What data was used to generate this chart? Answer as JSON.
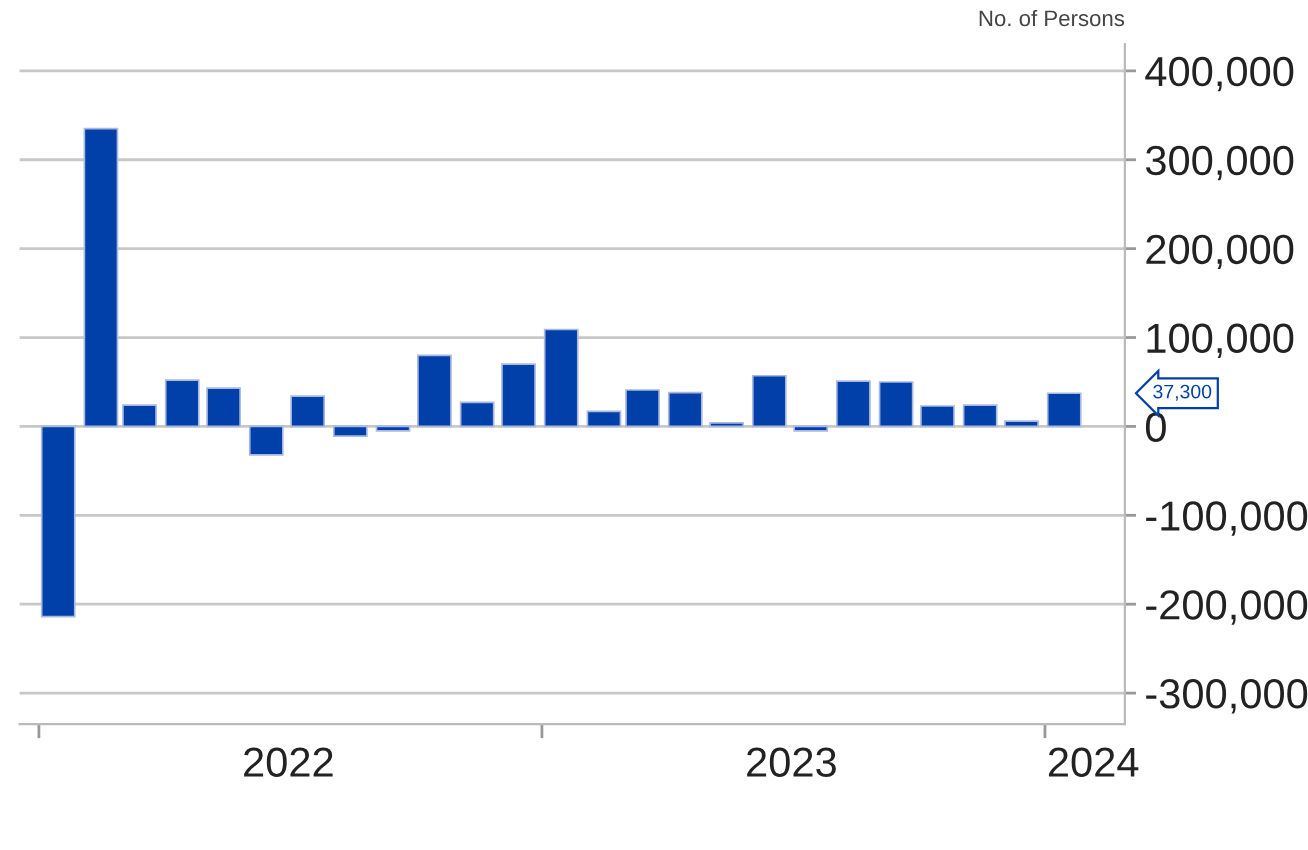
{
  "chart_data": {
    "type": "bar",
    "ylabel": "No. of Persons",
    "x": [
      "2022-01-15",
      "2022-02-15",
      "2022-03-15",
      "2022-04-15",
      "2022-05-15",
      "2022-06-15",
      "2022-07-15",
      "2022-08-15",
      "2022-09-15",
      "2022-10-15",
      "2022-11-15",
      "2022-12-15",
      "2023-01-15",
      "2023-02-15",
      "2023-03-15",
      "2023-04-15",
      "2023-05-15",
      "2023-06-15",
      "2023-07-15",
      "2023-08-15",
      "2023-09-15",
      "2023-10-15",
      "2023-11-15",
      "2023-12-15",
      "2024-01-15"
    ],
    "values": [
      -214000,
      335000,
      24000,
      52000,
      43000,
      -32000,
      34000,
      -11000,
      -5000,
      80000,
      27000,
      70000,
      109000,
      17000,
      41000,
      38000,
      4000,
      57000,
      -5000,
      51000,
      50000,
      23000,
      24000,
      6000,
      37300
    ],
    "color": "#0040a8",
    "xlim": [
      "2021-12-18",
      "2024-02-28"
    ],
    "xticks": [
      {
        "value": "2022-01-01",
        "label": null
      },
      {
        "value": "2022-07-01",
        "label": "2022"
      },
      {
        "value": "2023-01-01",
        "label": null
      },
      {
        "value": "2023-07-01",
        "label": "2023"
      },
      {
        "value": "2024-01-01",
        "label": null
      },
      {
        "value": "2024-02-05",
        "label": "2024"
      }
    ],
    "ylim": [
      -335000,
      430000
    ],
    "yticks": [
      {
        "value": -300000,
        "label": "-300,000"
      },
      {
        "value": -200000,
        "label": "-200,000"
      },
      {
        "value": -100000,
        "label": "-100,000"
      },
      {
        "value": 0,
        "label": "0"
      },
      {
        "value": 100000,
        "label": "100,000"
      },
      {
        "value": 200000,
        "label": "200,000"
      },
      {
        "value": 300000,
        "label": "300,000"
      },
      {
        "value": 400000,
        "label": "400,000"
      }
    ],
    "grid": "y",
    "annotations": [
      "37,300"
    ]
  }
}
